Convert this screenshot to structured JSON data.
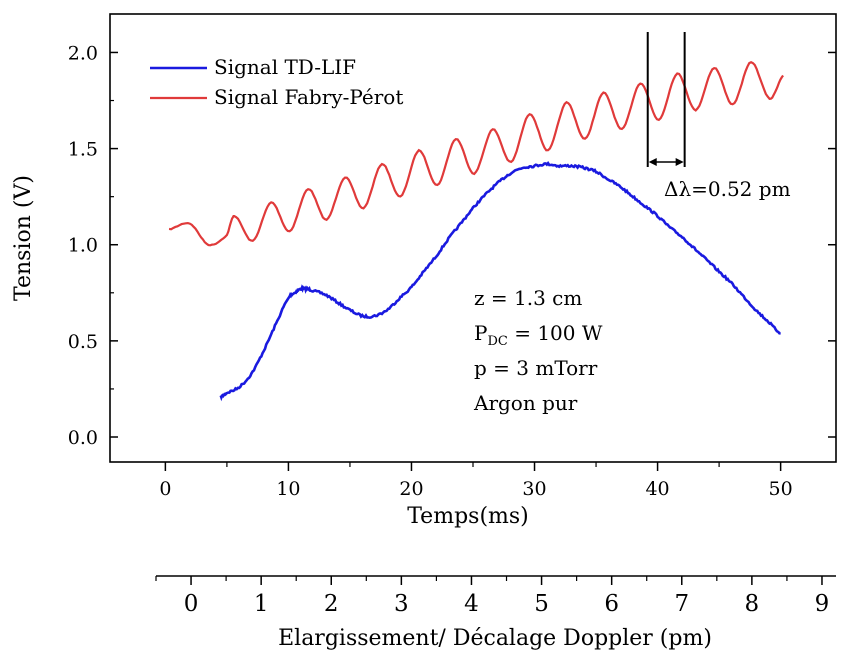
{
  "chart_data": {
    "type": "line",
    "xlabel": "Temps(ms)",
    "ylabel": "Tension (V)",
    "xlim": [
      -4.5,
      54.5
    ],
    "ylim": [
      -0.13,
      2.2
    ],
    "x_ticks": [
      0,
      10,
      20,
      30,
      40,
      50
    ],
    "y_ticks": [
      0.0,
      0.5,
      1.0,
      1.5,
      2.0
    ],
    "x_tick_labels": [
      "0",
      "10",
      "20",
      "30",
      "40",
      "50"
    ],
    "y_tick_labels": [
      "0.0",
      "0.5",
      "1.0",
      "1.5",
      "2.0"
    ],
    "grid": false,
    "legend_position": "top-left",
    "series": [
      {
        "name": "Signal TD-LIF",
        "color": "#1a1adf",
        "x": [
          4.5,
          5,
          6,
          7,
          8,
          9,
          10,
          10.5,
          11,
          11.5,
          12,
          13,
          14,
          15,
          16,
          17,
          18,
          19,
          20,
          21,
          22,
          23,
          24,
          25,
          26,
          27,
          28,
          29,
          30,
          31,
          32,
          33,
          34,
          35,
          36,
          37,
          38,
          39,
          40,
          41,
          42,
          43,
          44,
          45,
          46,
          47,
          48,
          49,
          50
        ],
        "y": [
          0.21,
          0.23,
          0.26,
          0.33,
          0.45,
          0.59,
          0.72,
          0.75,
          0.77,
          0.77,
          0.76,
          0.74,
          0.7,
          0.66,
          0.63,
          0.63,
          0.66,
          0.72,
          0.78,
          0.86,
          0.94,
          1.03,
          1.11,
          1.19,
          1.26,
          1.32,
          1.37,
          1.4,
          1.41,
          1.42,
          1.41,
          1.41,
          1.4,
          1.38,
          1.34,
          1.3,
          1.25,
          1.2,
          1.15,
          1.09,
          1.04,
          0.98,
          0.92,
          0.86,
          0.8,
          0.73,
          0.66,
          0.6,
          0.54
        ]
      },
      {
        "name": "Signal Fabry-Pérot",
        "color": "#e03a3a",
        "x_start": 0.3,
        "x_end": 50.2,
        "period_ms": 3.0,
        "x": [
          0.3,
          2.0,
          3.5,
          5.0,
          5.6,
          7.1,
          8.6,
          10.1,
          11.6,
          13.1,
          14.6,
          16.1,
          17.6,
          19.1,
          20.6,
          22.1,
          23.6,
          25.1,
          26.6,
          28.1,
          29.6,
          31.1,
          32.6,
          34.1,
          35.6,
          37.1,
          38.6,
          40.1,
          41.6,
          43.1,
          44.6,
          46.1,
          47.6,
          49.1,
          50.2
        ],
        "y": [
          1.08,
          1.11,
          1.0,
          1.05,
          1.15,
          1.02,
          1.22,
          1.07,
          1.29,
          1.13,
          1.35,
          1.19,
          1.42,
          1.25,
          1.49,
          1.31,
          1.55,
          1.37,
          1.6,
          1.43,
          1.68,
          1.49,
          1.74,
          1.55,
          1.79,
          1.6,
          1.84,
          1.65,
          1.89,
          1.7,
          1.92,
          1.73,
          1.95,
          1.76,
          1.88
        ]
      }
    ],
    "annotations": {
      "delta_lambda_label": "Δλ=0.52 pm",
      "marker_x": [
        39.2,
        42.2
      ],
      "conditions": {
        "z": "z = 1.3 cm",
        "p_dc_main": "P",
        "p_dc_sub": "DC",
        "p_dc_rest": " = 100 W",
        "p": "p = 3 mTorr",
        "gas": "Argon pur"
      }
    },
    "secondary_axis": {
      "label": "Elargissement/ Décalage Doppler (pm)",
      "xlim": [
        -0.5,
        9.2
      ],
      "ticks": [
        0,
        1,
        2,
        3,
        4,
        5,
        6,
        7,
        8,
        9
      ],
      "tick_labels": [
        "0",
        "1",
        "2",
        "3",
        "4",
        "5",
        "6",
        "7",
        "8",
        "9"
      ]
    }
  }
}
